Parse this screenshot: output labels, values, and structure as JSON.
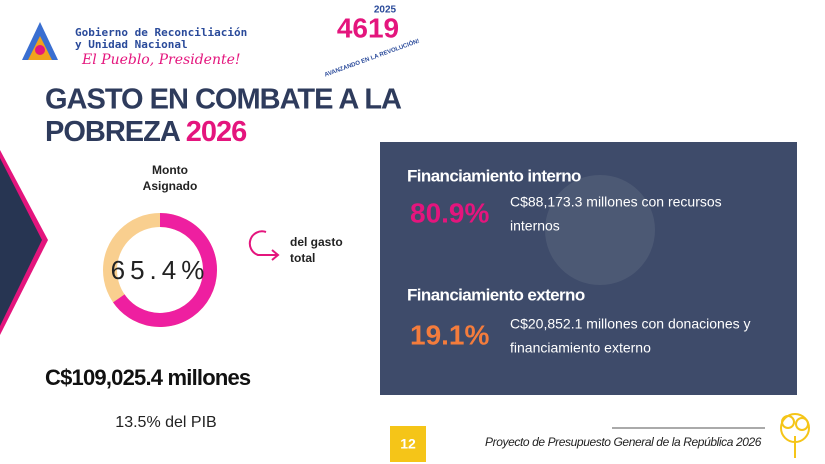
{
  "header": {
    "org_line1": "Gobierno de Reconciliación",
    "org_line2": "y Unidad Nacional",
    "slogan": "El Pueblo, Presidente!",
    "logo_year": "2025",
    "logo_number": "4619",
    "logo_motto": "AVANZANDO EN LA REVOLUCIÓN!"
  },
  "title": {
    "line1": "GASTO EN COMBATE A LA",
    "line2": "POBREZA",
    "year": "2026"
  },
  "donut": {
    "caption_line1": "Monto",
    "caption_line2": "Asignado",
    "value": 65.4,
    "value_label": "65.4%",
    "note_line1": "del gasto",
    "note_line2": "total"
  },
  "total": {
    "amount": "C$109,025.4 millones",
    "pib": "13.5% del PIB"
  },
  "panel": {
    "internal": {
      "heading": "Financiamiento interno",
      "percent": "80.9%",
      "text_line1": "C$88,173.3 millones con recursos",
      "text_line2": "internos"
    },
    "external": {
      "heading": "Financiamiento externo",
      "percent": "19.1%",
      "text_line1": "C$20,852.1 millones con donaciones y",
      "text_line2": "financiamiento externo"
    }
  },
  "footer": {
    "page": "12",
    "caption": "Proyecto de Presupuesto General de la República 2026"
  }
}
